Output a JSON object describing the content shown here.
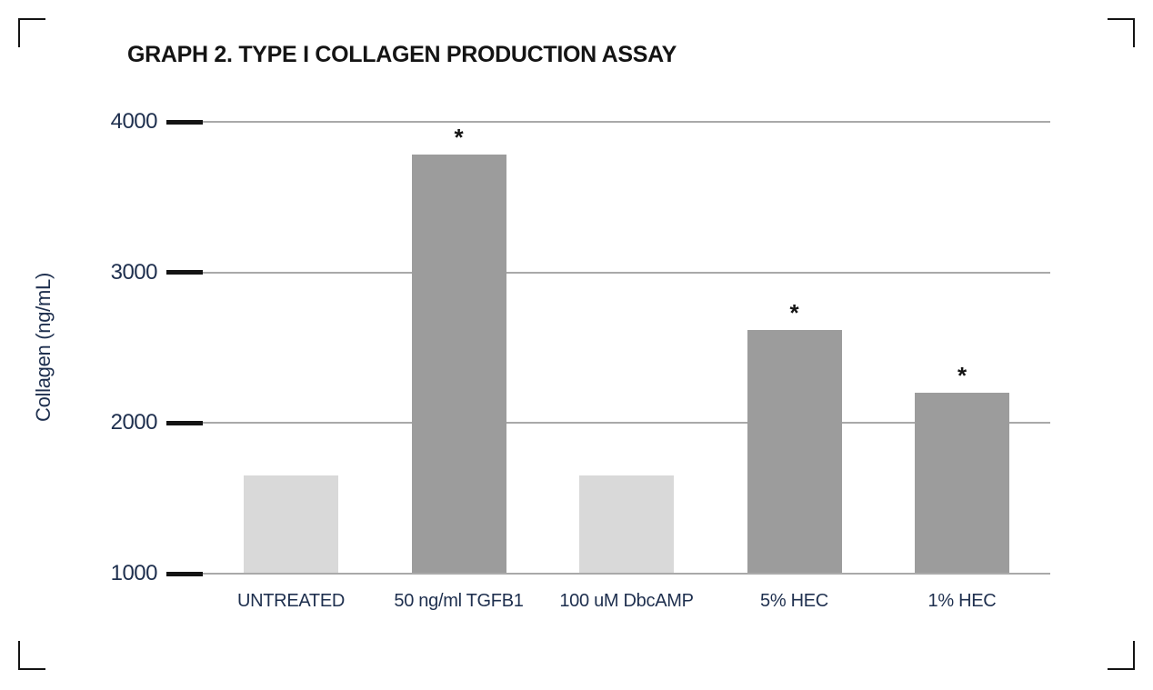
{
  "chart_data": {
    "type": "bar",
    "title": "GRAPH 2. TYPE I COLLAGEN PRODUCTION ASSAY",
    "ylabel": "Collagen (ng/mL)",
    "xlabel": "",
    "categories": [
      "UNTREATED",
      "50 ng/ml TGFB1",
      "100 uM DbcAMP",
      "5% HEC",
      "1% HEC"
    ],
    "values": [
      1650,
      3780,
      1650,
      2620,
      2200
    ],
    "significant": [
      false,
      true,
      false,
      true,
      true
    ],
    "significance_marker": "*",
    "ylim": [
      1000,
      4000
    ],
    "yticks": [
      4000,
      3000,
      2000,
      1000
    ],
    "grid": true,
    "legend": false,
    "colors": {
      "bar_control": "#d9d9d9",
      "bar_treated": "#9c9c9c",
      "gridline": "#a9a9a9",
      "tick": "#141414",
      "axis_text": "#1e2f4e",
      "title_text": "#141414",
      "marker": "#141414"
    }
  }
}
